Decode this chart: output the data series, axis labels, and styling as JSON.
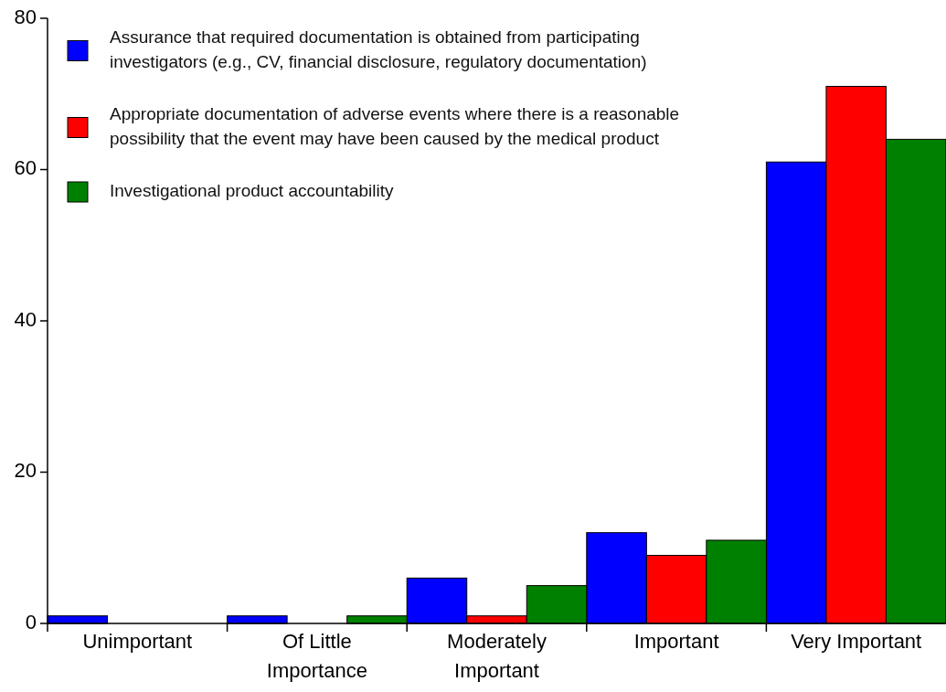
{
  "chart_data": {
    "type": "bar",
    "categories": [
      "Unimportant",
      "Of Little Importance",
      "Moderately Important",
      "Important",
      "Very Important"
    ],
    "series": [
      {
        "name": "Assurance that required documentation is obtained from participating investigators (e.g., CV, financial disclosure, regulatory documentation)",
        "color": "#0000ff",
        "values": [
          1,
          1,
          6,
          12,
          61
        ]
      },
      {
        "name": "Appropriate documentation of adverse events where there is a reasonable possibility that the event may have been caused by the medical product",
        "color": "#ff0000",
        "values": [
          0,
          0,
          1,
          9,
          71
        ]
      },
      {
        "name": "Investigational product accountability",
        "color": "#008000",
        "values": [
          0,
          1,
          5,
          11,
          64
        ]
      }
    ],
    "ylim": [
      0,
      80
    ],
    "yticks": [
      0,
      20,
      40,
      60,
      80
    ],
    "legend": "top left"
  }
}
